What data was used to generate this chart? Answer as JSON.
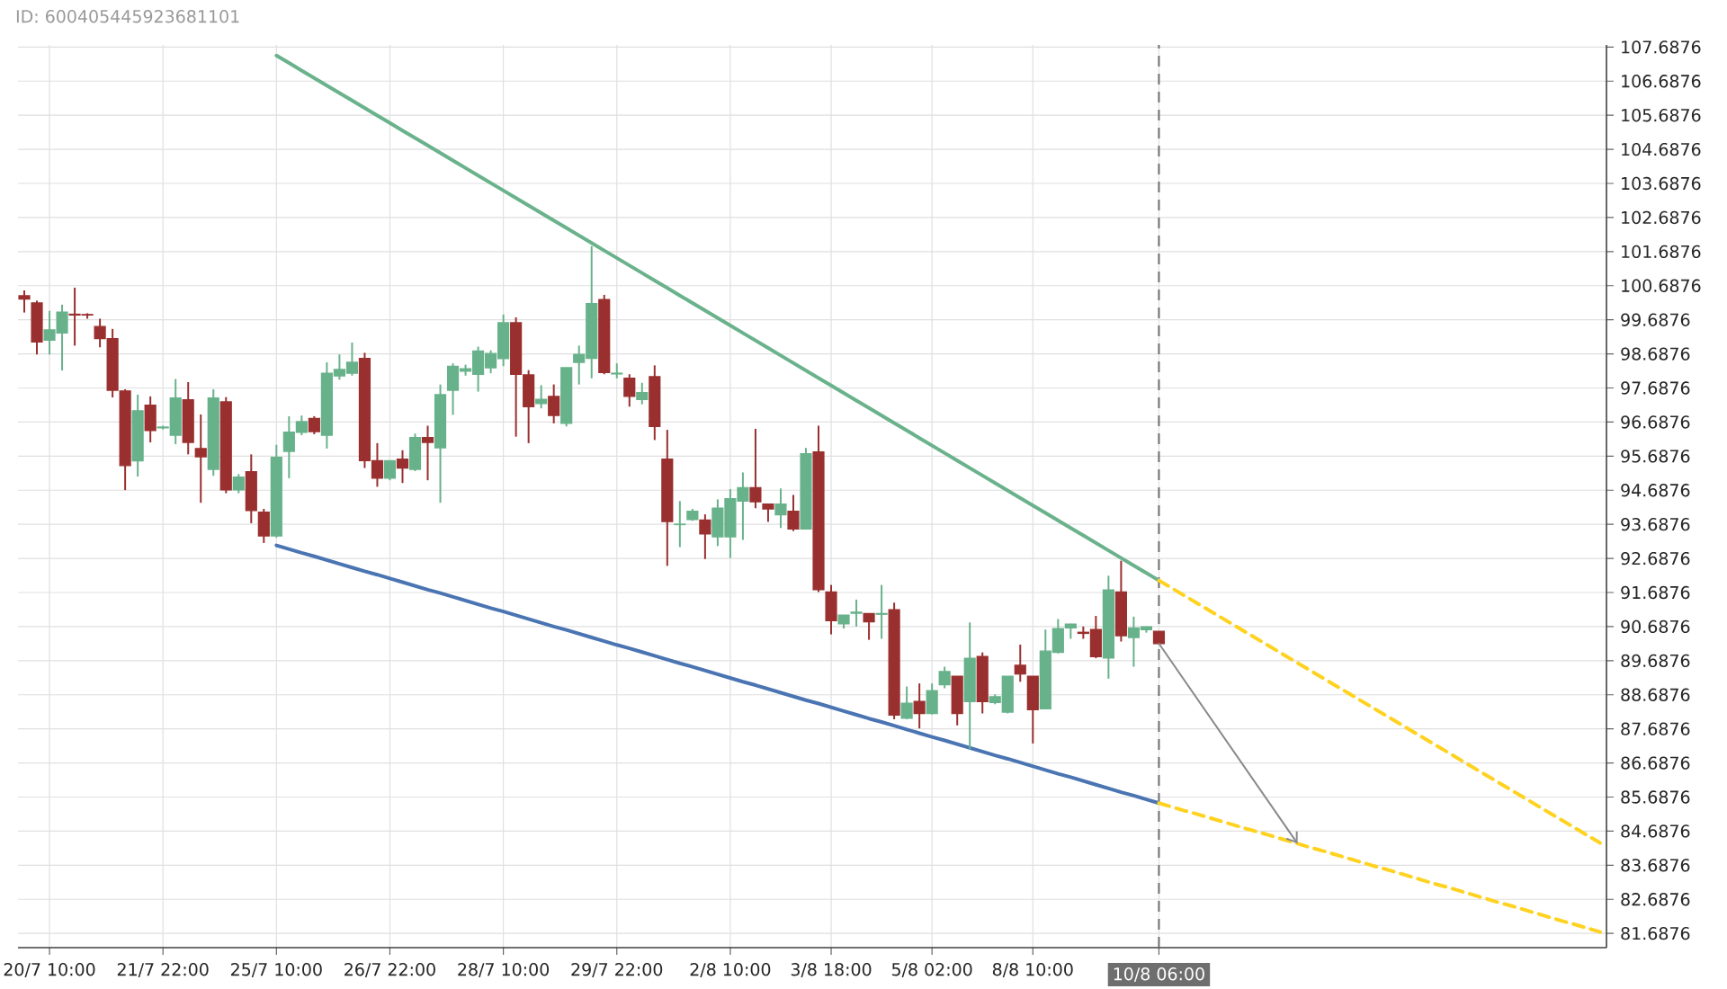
{
  "chart_data": {
    "type": "candlestick",
    "annotations": [
      "ID: 600405445923681101"
    ],
    "categories": [
      null,
      null,
      "20/7 10:00",
      null,
      null,
      null,
      null,
      null,
      null,
      null,
      null,
      "21/7 22:00",
      null,
      null,
      null,
      null,
      null,
      null,
      null,
      null,
      "25/7 10:00",
      null,
      null,
      null,
      null,
      null,
      null,
      null,
      null,
      "26/7 22:00",
      null,
      null,
      null,
      null,
      null,
      null,
      null,
      null,
      "28/7 10:00",
      null,
      null,
      null,
      null,
      null,
      null,
      null,
      null,
      "29/7 22:00",
      null,
      null,
      null,
      null,
      null,
      null,
      null,
      null,
      "2/8 10:00",
      null,
      null,
      null,
      null,
      null,
      null,
      null,
      "3/8 18:00",
      null,
      null,
      null,
      null,
      null,
      null,
      null,
      "5/8 02:00",
      null,
      null,
      null,
      null,
      null,
      null,
      null,
      "8/8 10:00",
      null,
      null,
      null,
      null,
      null,
      null,
      null,
      null,
      null,
      "10/8 06:00",
      null,
      null,
      null,
      null,
      null,
      null,
      null,
      null,
      null,
      null,
      null,
      null,
      null,
      null,
      null,
      null,
      null,
      null,
      null,
      null,
      null,
      null,
      null,
      null,
      null,
      null,
      null,
      null,
      null,
      null,
      null,
      null,
      null,
      null,
      null
    ],
    "ylim": [
      81.27,
      107.75
    ],
    "yticks": [
      81.6876,
      82.6876,
      83.6876,
      84.6876,
      85.6876,
      86.6876,
      87.6876,
      88.6876,
      89.6876,
      90.6876,
      91.6876,
      92.6876,
      93.6876,
      94.6876,
      95.6876,
      96.6876,
      97.6876,
      98.6876,
      99.6876,
      100.6876,
      101.6876,
      102.6876,
      103.6876,
      104.6876,
      105.6876,
      106.6876,
      107.6876
    ],
    "grid": true,
    "ref_lines": [
      {
        "axis": "x",
        "value": "10/8 06:00",
        "color": "#6e6e6e",
        "line_style": "dashed"
      }
    ],
    "series": [
      {
        "type": "line",
        "color": "#6ab28c",
        "values": [
          null,
          null,
          null,
          null,
          null,
          null,
          null,
          null,
          null,
          null,
          null,
          null,
          null,
          null,
          null,
          null,
          null,
          null,
          null,
          null,
          107.44,
          107.22,
          107.0,
          106.78,
          106.56,
          106.34,
          106.12,
          105.9,
          105.68,
          105.46,
          105.24,
          105.02,
          104.8,
          104.58,
          104.36,
          104.14,
          103.92,
          103.7,
          103.48,
          103.26,
          103.04,
          102.82,
          102.6,
          102.38,
          102.16,
          101.94,
          101.72,
          101.5,
          101.28,
          101.06,
          100.84,
          100.62,
          100.4,
          100.18,
          99.96,
          99.74,
          99.52,
          99.3,
          99.08,
          98.86,
          98.64,
          98.42,
          98.2,
          97.98,
          97.76,
          97.54,
          97.32,
          97.1,
          96.88,
          96.66,
          96.44,
          96.22,
          96.0,
          95.78,
          95.56,
          95.34,
          95.12,
          94.9,
          94.68,
          94.46,
          94.24,
          94.02,
          93.8,
          93.58,
          93.36,
          93.14,
          92.92,
          92.7,
          92.48,
          92.26,
          92.04,
          null,
          null,
          null,
          null,
          null,
          null,
          null,
          null,
          null,
          null,
          null,
          null,
          null,
          null,
          null,
          null,
          null,
          null,
          null,
          null,
          null,
          null,
          null,
          null,
          null,
          null,
          null,
          null,
          null,
          null,
          null,
          null,
          null,
          null,
          null
        ]
      },
      {
        "type": "line",
        "color": "#ffd21f",
        "line_style": "dashed",
        "values": [
          null,
          null,
          null,
          null,
          null,
          null,
          null,
          null,
          null,
          null,
          null,
          null,
          null,
          null,
          null,
          null,
          null,
          null,
          null,
          null,
          null,
          null,
          null,
          null,
          null,
          null,
          null,
          null,
          null,
          null,
          null,
          null,
          null,
          null,
          null,
          null,
          null,
          null,
          null,
          null,
          null,
          null,
          null,
          null,
          null,
          null,
          null,
          null,
          null,
          null,
          null,
          null,
          null,
          null,
          null,
          null,
          null,
          null,
          null,
          null,
          null,
          null,
          null,
          null,
          null,
          null,
          null,
          null,
          null,
          null,
          null,
          null,
          null,
          null,
          null,
          null,
          null,
          null,
          null,
          null,
          null,
          null,
          null,
          null,
          null,
          null,
          null,
          null,
          null,
          null,
          92.04,
          91.82,
          91.6,
          91.38,
          91.16,
          90.94,
          90.72,
          90.5,
          90.28,
          90.06,
          89.84,
          89.62,
          89.4,
          89.18,
          88.96,
          88.74,
          88.52,
          88.3,
          88.08,
          87.86,
          87.64,
          87.42,
          87.2,
          86.98,
          86.76,
          86.54,
          86.32,
          86.1,
          85.88,
          85.66,
          85.44,
          85.22,
          85.0,
          84.78,
          84.56,
          84.34
        ]
      },
      {
        "type": "line",
        "color": "#4a74b2",
        "values": [
          null,
          null,
          null,
          null,
          null,
          null,
          null,
          null,
          null,
          null,
          null,
          null,
          null,
          null,
          null,
          null,
          null,
          null,
          null,
          null,
          93.07,
          92.96,
          92.85,
          92.75,
          92.64,
          92.53,
          92.42,
          92.31,
          92.21,
          92.1,
          91.99,
          91.88,
          91.77,
          91.67,
          91.56,
          91.45,
          91.34,
          91.23,
          91.13,
          91.02,
          90.91,
          90.8,
          90.69,
          90.59,
          90.48,
          90.37,
          90.26,
          90.15,
          90.05,
          89.94,
          89.83,
          89.72,
          89.61,
          89.51,
          89.4,
          89.29,
          89.18,
          89.07,
          88.97,
          88.86,
          88.75,
          88.64,
          88.53,
          88.43,
          88.32,
          88.21,
          88.1,
          87.99,
          87.89,
          87.78,
          87.67,
          87.56,
          87.45,
          87.35,
          87.24,
          87.13,
          87.02,
          86.91,
          86.81,
          86.7,
          86.59,
          86.48,
          86.37,
          86.27,
          86.16,
          86.05,
          85.94,
          85.83,
          85.73,
          85.62,
          85.51,
          null,
          null,
          null,
          null,
          null,
          null,
          null,
          null,
          null,
          null,
          null,
          null,
          null,
          null,
          null,
          null,
          null,
          null,
          null,
          null,
          null,
          null,
          null,
          null,
          null,
          null,
          null,
          null,
          null,
          null,
          null,
          null,
          null,
          null,
          null
        ]
      },
      {
        "type": "line",
        "color": "#ffd21f",
        "line_style": "dashed",
        "values": [
          null,
          null,
          null,
          null,
          null,
          null,
          null,
          null,
          null,
          null,
          null,
          null,
          null,
          null,
          null,
          null,
          null,
          null,
          null,
          null,
          null,
          null,
          null,
          null,
          null,
          null,
          null,
          null,
          null,
          null,
          null,
          null,
          null,
          null,
          null,
          null,
          null,
          null,
          null,
          null,
          null,
          null,
          null,
          null,
          null,
          null,
          null,
          null,
          null,
          null,
          null,
          null,
          null,
          null,
          null,
          null,
          null,
          null,
          null,
          null,
          null,
          null,
          null,
          null,
          null,
          null,
          null,
          null,
          null,
          null,
          null,
          null,
          null,
          null,
          null,
          null,
          null,
          null,
          null,
          null,
          null,
          null,
          null,
          null,
          null,
          null,
          null,
          null,
          null,
          null,
          85.51,
          85.4,
          85.29,
          85.19,
          85.08,
          84.97,
          84.86,
          84.75,
          84.65,
          84.54,
          84.43,
          84.32,
          84.21,
          84.11,
          84.0,
          83.89,
          83.78,
          83.67,
          83.57,
          83.46,
          83.35,
          83.24,
          83.13,
          83.03,
          82.92,
          82.81,
          82.7,
          82.59,
          82.49,
          82.38,
          82.27,
          82.16,
          82.05,
          81.95,
          81.84,
          81.73
        ]
      },
      {
        "ohlc": [
          [
            100.39,
            100.55,
            99.9,
            100.3
          ],
          [
            100.18,
            100.25,
            98.67,
            99.04
          ],
          [
            99.09,
            99.95,
            98.67,
            99.39
          ],
          [
            99.3,
            100.13,
            98.2,
            99.91
          ],
          [
            99.85,
            100.63,
            98.93,
            99.83
          ],
          [
            99.84,
            99.88,
            99.72,
            99.83
          ],
          [
            99.49,
            99.72,
            98.88,
            99.14
          ],
          [
            99.13,
            99.42,
            97.41,
            97.62
          ],
          [
            97.6,
            97.65,
            94.69,
            95.41
          ],
          [
            95.55,
            97.49,
            95.09,
            97.02
          ],
          [
            97.18,
            97.44,
            96.09,
            96.44
          ],
          [
            96.52,
            96.58,
            96.47,
            96.54
          ],
          [
            96.3,
            97.95,
            96.04,
            97.39
          ],
          [
            97.34,
            97.86,
            95.74,
            96.09
          ],
          [
            95.91,
            96.91,
            94.32,
            95.67
          ],
          [
            95.3,
            97.65,
            95.11,
            97.39
          ],
          [
            97.28,
            97.42,
            94.6,
            94.7
          ],
          [
            94.7,
            95.16,
            94.6,
            95.07
          ],
          [
            95.23,
            95.74,
            93.72,
            94.09
          ],
          [
            94.04,
            94.14,
            93.14,
            93.35
          ],
          [
            93.35,
            96.02,
            93.3,
            95.65
          ],
          [
            95.83,
            96.86,
            95.04,
            96.39
          ],
          [
            96.39,
            96.88,
            96.3,
            96.7
          ],
          [
            96.79,
            96.86,
            96.33,
            96.41
          ],
          [
            96.3,
            98.44,
            95.91,
            98.12
          ],
          [
            98.04,
            98.67,
            97.93,
            98.23
          ],
          [
            98.12,
            99.02,
            98.05,
            98.44
          ],
          [
            98.55,
            98.72,
            95.34,
            95.56
          ],
          [
            95.55,
            96.07,
            94.79,
            95.04
          ],
          [
            95.04,
            95.56,
            94.98,
            95.55
          ],
          [
            95.6,
            95.86,
            94.9,
            95.34
          ],
          [
            95.3,
            96.35,
            95.25,
            96.23
          ],
          [
            96.23,
            96.58,
            94.98,
            96.09
          ],
          [
            95.93,
            97.79,
            94.32,
            97.49
          ],
          [
            97.62,
            98.41,
            96.9,
            98.32
          ],
          [
            98.18,
            98.37,
            98.05,
            98.25
          ],
          [
            98.09,
            98.9,
            97.58,
            98.77
          ],
          [
            98.28,
            98.79,
            98.12,
            98.7
          ],
          [
            98.55,
            99.84,
            98.33,
            99.6
          ],
          [
            99.6,
            99.76,
            96.26,
            98.09
          ],
          [
            98.07,
            98.21,
            96.07,
            97.14
          ],
          [
            97.23,
            97.77,
            97.09,
            97.35
          ],
          [
            97.44,
            97.79,
            96.65,
            96.88
          ],
          [
            96.65,
            98.28,
            96.56,
            98.28
          ],
          [
            98.44,
            98.93,
            97.79,
            98.67
          ],
          [
            98.56,
            101.85,
            97.97,
            100.16
          ],
          [
            100.28,
            100.42,
            98.09,
            98.14
          ],
          [
            98.1,
            98.41,
            97.97,
            98.12
          ],
          [
            97.97,
            98.09,
            97.14,
            97.44
          ],
          [
            97.35,
            97.84,
            97.21,
            97.55
          ],
          [
            98.02,
            98.35,
            96.16,
            96.56
          ],
          [
            95.6,
            96.46,
            92.47,
            93.77
          ],
          [
            93.68,
            94.37,
            93.02,
            93.69
          ],
          [
            93.83,
            94.14,
            93.79,
            94.07
          ],
          [
            93.81,
            93.98,
            92.67,
            93.41
          ],
          [
            93.32,
            94.42,
            93.05,
            94.16
          ],
          [
            93.32,
            94.72,
            92.7,
            94.44
          ],
          [
            94.37,
            95.21,
            93.23,
            94.76
          ],
          [
            94.76,
            96.49,
            94.16,
            94.35
          ],
          [
            94.28,
            94.28,
            93.76,
            94.14
          ],
          [
            93.97,
            94.74,
            93.58,
            94.28
          ],
          [
            94.07,
            94.55,
            93.49,
            93.55
          ],
          [
            93.55,
            95.93,
            93.55,
            95.76
          ],
          [
            95.81,
            96.58,
            91.7,
            91.77
          ],
          [
            91.7,
            91.91,
            90.46,
            90.86
          ],
          [
            90.77,
            91.02,
            90.63,
            91.02
          ],
          [
            91.08,
            91.48,
            90.69,
            91.11
          ],
          [
            91.07,
            91.07,
            90.3,
            90.83
          ],
          [
            91.05,
            91.91,
            90.33,
            91.07
          ],
          [
            91.18,
            91.39,
            87.97,
            88.09
          ],
          [
            88.0,
            88.93,
            87.97,
            88.44
          ],
          [
            88.49,
            89.02,
            87.7,
            88.14
          ],
          [
            88.14,
            89.02,
            88.11,
            88.81
          ],
          [
            88.98,
            89.51,
            88.88,
            89.37
          ],
          [
            89.23,
            89.23,
            87.79,
            88.14
          ],
          [
            88.49,
            90.81,
            87.09,
            89.76
          ],
          [
            89.81,
            89.93,
            88.14,
            88.49
          ],
          [
            88.46,
            88.7,
            88.41,
            88.63
          ],
          [
            88.18,
            89.23,
            88.14,
            89.23
          ],
          [
            89.55,
            90.16,
            89.07,
            89.3
          ],
          [
            89.23,
            89.23,
            87.26,
            88.25
          ],
          [
            88.28,
            90.6,
            88.28,
            89.97
          ],
          [
            89.93,
            90.91,
            89.9,
            90.63
          ],
          [
            90.65,
            90.77,
            90.33,
            90.76
          ],
          [
            90.52,
            90.69,
            90.33,
            90.49
          ],
          [
            90.6,
            91.0,
            89.76,
            89.81
          ],
          [
            89.77,
            92.18,
            89.16,
            91.76
          ],
          [
            91.7,
            92.62,
            90.25,
            90.42
          ],
          [
            90.37,
            90.98,
            89.51,
            90.65
          ],
          [
            90.6,
            90.69,
            90.51,
            90.68
          ],
          [
            90.55,
            90.55,
            90.16,
            90.19
          ],
          null,
          null,
          null,
          null,
          null,
          null,
          null,
          null,
          null,
          null,
          null,
          null,
          null,
          null,
          null,
          null,
          null,
          null,
          null,
          null,
          null,
          null,
          null,
          null,
          null,
          null,
          null,
          null,
          null,
          null,
          null,
          null,
          null,
          null,
          null
        ],
        "colors": [
          "#99302f",
          "#99302f",
          "#68b28b",
          "#68b28b",
          "#99302f",
          "#99302f",
          "#99302f",
          "#99302f",
          "#99302f",
          "#68b28b",
          "#99302f",
          "#68b28b",
          "#68b28b",
          "#99302f",
          "#99302f",
          "#68b28b",
          "#99302f",
          "#68b28b",
          "#99302f",
          "#99302f",
          "#68b28b",
          "#68b28b",
          "#68b28b",
          "#99302f",
          "#68b28b",
          "#68b28b",
          "#68b28b",
          "#99302f",
          "#99302f",
          "#68b28b",
          "#99302f",
          "#68b28b",
          "#99302f",
          "#68b28b",
          "#68b28b",
          "#68b28b",
          "#68b28b",
          "#68b28b",
          "#68b28b",
          "#99302f",
          "#99302f",
          "#68b28b",
          "#99302f",
          "#68b28b",
          "#68b28b",
          "#68b28b",
          "#99302f",
          "#68b28b",
          "#99302f",
          "#68b28b",
          "#99302f",
          "#99302f",
          "#68b28b",
          "#68b28b",
          "#99302f",
          "#68b28b",
          "#68b28b",
          "#68b28b",
          "#99302f",
          "#99302f",
          "#68b28b",
          "#99302f",
          "#68b28b",
          "#99302f",
          "#99302f",
          "#68b28b",
          "#68b28b",
          "#99302f",
          "#68b28b",
          "#99302f",
          "#68b28b",
          "#99302f",
          "#68b28b",
          "#68b28b",
          "#99302f",
          "#68b28b",
          "#99302f",
          "#68b28b",
          "#68b28b",
          "#99302f",
          "#99302f",
          "#68b28b",
          "#68b28b",
          "#68b28b",
          "#99302f",
          "#99302f",
          "#68b28b",
          "#99302f",
          "#68b28b",
          "#68b28b",
          "#99302f",
          null,
          null,
          null,
          null,
          null,
          null,
          null,
          null,
          null,
          null,
          null,
          null,
          null,
          null,
          null,
          null,
          null,
          null,
          null,
          null,
          null,
          null,
          null,
          null,
          null,
          null,
          null,
          null,
          null,
          null,
          null,
          null,
          null,
          null,
          null
        ]
      }
    ]
  }
}
